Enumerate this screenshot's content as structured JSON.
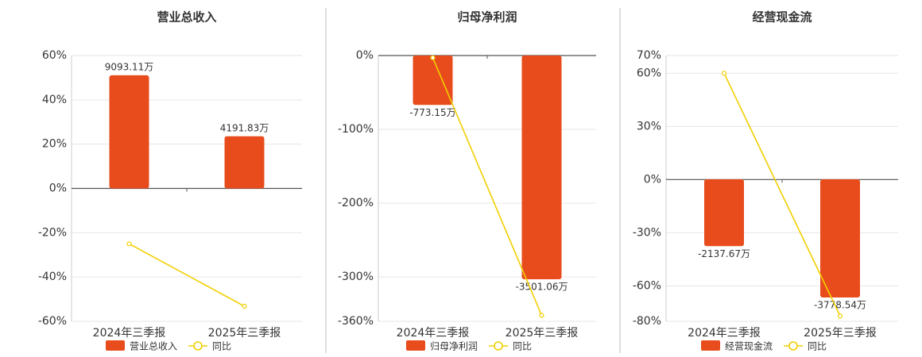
{
  "chart_data": [
    {
      "type": "bar_line",
      "title": "营业总收入",
      "categories": [
        "2024年三季报",
        "2025年三季报"
      ],
      "series": [
        {
          "name": "营业总收入",
          "type": "bar",
          "axis": "y2",
          "color": "#e84c1c",
          "values": [
            9093.11,
            4191.83
          ],
          "value_labels": [
            "9093.11万",
            "4191.83万"
          ]
        },
        {
          "name": "同比",
          "type": "line",
          "color": "#f2cf00",
          "values": [
            -25,
            -53.2
          ]
        }
      ],
      "ylim": [
        -60,
        60
      ],
      "y2lim": [
        -10680,
        10680
      ],
      "yticks": [
        {
          "value": 60,
          "label": "60%"
        },
        {
          "value": 40,
          "label": "40%"
        },
        {
          "value": 20,
          "label": "20%"
        },
        {
          "value": 0,
          "label": "0%"
        },
        {
          "value": -20,
          "label": "-20%"
        },
        {
          "value": -40,
          "label": "-40%"
        },
        {
          "value": -60,
          "label": "-60%"
        }
      ],
      "grid": true
    },
    {
      "type": "bar_line",
      "title": "归母净利润",
      "categories": [
        "2024年三季报",
        "2025年三季报"
      ],
      "series": [
        {
          "name": "归母净利润",
          "type": "bar",
          "axis": "y2",
          "color": "#e84c1c",
          "values": [
            -773.15,
            -3501.06
          ],
          "value_labels": [
            "-773.15万",
            "-3501.06万"
          ]
        },
        {
          "name": "同比",
          "type": "line",
          "color": "#f2cf00",
          "values": [
            -3,
            -352
          ]
        }
      ],
      "ylim": [
        -360,
        0
      ],
      "y2lim": [
        -4159,
        0
      ],
      "yticks": [
        {
          "value": 0,
          "label": "0%"
        },
        {
          "value": -100,
          "label": "-100%"
        },
        {
          "value": -200,
          "label": "-200%"
        },
        {
          "value": -300,
          "label": "-300%"
        },
        {
          "value": -360,
          "label": "-360%"
        }
      ],
      "grid": true
    },
    {
      "type": "bar_line",
      "title": "经营现金流",
      "categories": [
        "2024年三季报",
        "2025年三季报"
      ],
      "series": [
        {
          "name": "经营现金流",
          "type": "bar",
          "axis": "y2",
          "color": "#e84c1c",
          "values": [
            -2137.67,
            -3778.54
          ],
          "value_labels": [
            "-2137.67万",
            "-3778.54万"
          ]
        },
        {
          "name": "同比",
          "type": "line",
          "color": "#f2cf00",
          "values": [
            60,
            -77
          ]
        }
      ],
      "ylim": [
        -80,
        70
      ],
      "y2lim": [
        -4540,
        3956
      ],
      "yticks": [
        {
          "value": 70,
          "label": "70%"
        },
        {
          "value": 60,
          "label": "60%"
        },
        {
          "value": 30,
          "label": "30%"
        },
        {
          "value": 0,
          "label": "0%"
        },
        {
          "value": -30,
          "label": "-30%"
        },
        {
          "value": -60,
          "label": "-60%"
        },
        {
          "value": -80,
          "label": "-80%"
        }
      ],
      "grid": true
    }
  ]
}
